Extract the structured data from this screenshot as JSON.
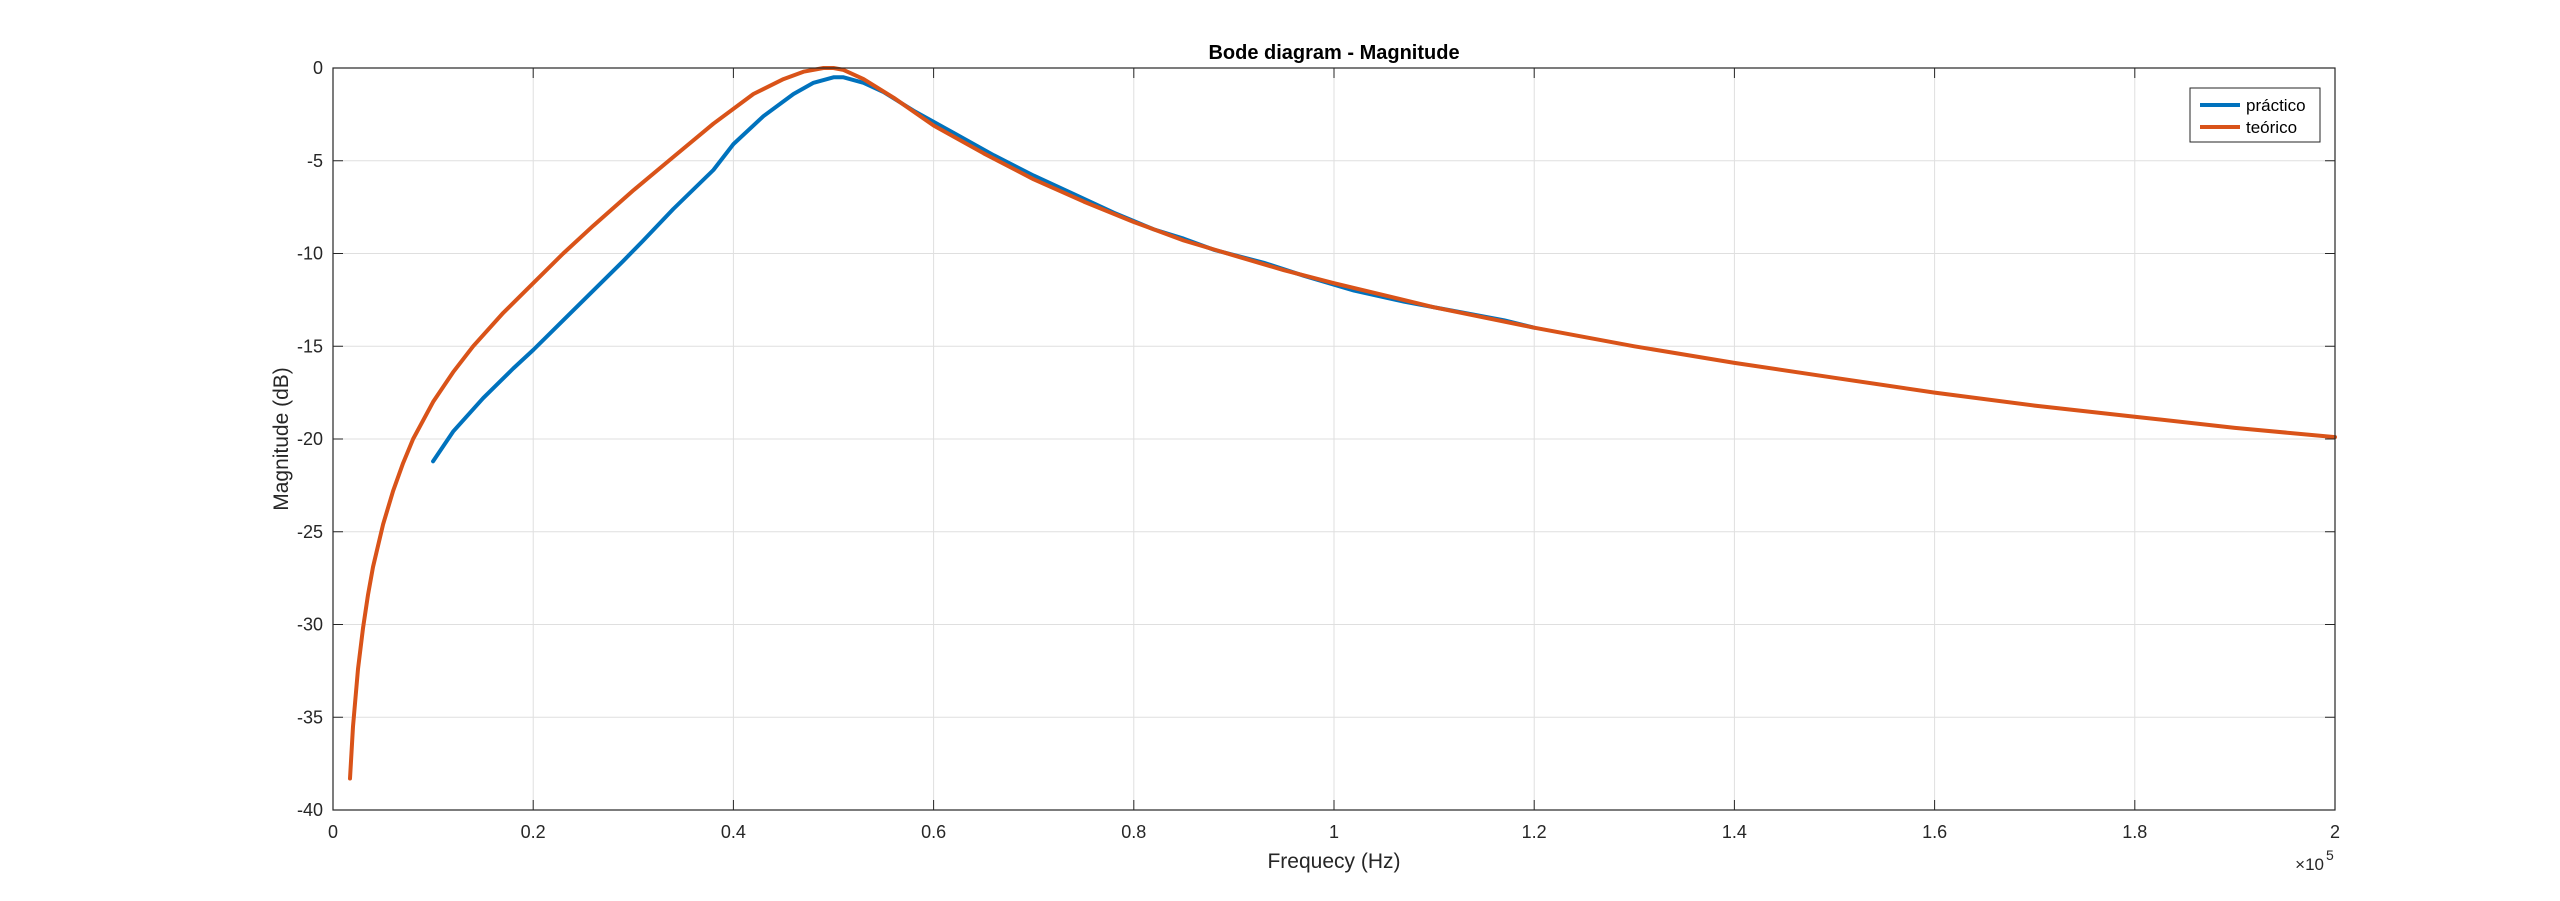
{
  "chart_data": {
    "type": "line",
    "title": "Bode diagram - Magnitude",
    "xlabel": "Frequecy (Hz)",
    "ylabel": "Magnitude (dB)",
    "x_exponent_label": "×10",
    "x_exponent_power": "5",
    "xlim": [
      0,
      2
    ],
    "ylim": [
      -40,
      0
    ],
    "x_ticks": [
      0,
      0.2,
      0.4,
      0.6,
      0.8,
      1,
      1.2,
      1.4,
      1.6,
      1.8,
      2
    ],
    "x_tick_labels": [
      "0",
      "0.2",
      "0.4",
      "0.6",
      "0.8",
      "1",
      "1.2",
      "1.4",
      "1.6",
      "1.8",
      "2"
    ],
    "y_ticks": [
      0,
      -5,
      -10,
      -15,
      -20,
      -25,
      -30,
      -35,
      -40
    ],
    "y_tick_labels": [
      "0",
      "-5",
      "-10",
      "-15",
      "-20",
      "-25",
      "-30",
      "-35",
      "-40"
    ],
    "grid": true,
    "legend_position": "top-right",
    "series": [
      {
        "name": "práctico",
        "color": "#0072BD",
        "x": [
          0.1,
          0.12,
          0.15,
          0.18,
          0.2,
          0.23,
          0.26,
          0.29,
          0.31,
          0.34,
          0.38,
          0.4,
          0.43,
          0.46,
          0.48,
          0.5,
          0.51,
          0.53,
          0.55,
          0.58,
          0.62,
          0.66,
          0.7,
          0.74,
          0.78,
          0.82,
          0.85,
          0.88,
          0.93,
          0.97,
          1.02,
          1.07,
          1.12,
          1.17,
          1.2
        ],
        "y": [
          -21.2,
          -19.6,
          -17.8,
          -16.2,
          -15.2,
          -13.6,
          -12.0,
          -10.4,
          -9.3,
          -7.6,
          -5.5,
          -4.1,
          -2.6,
          -1.4,
          -0.8,
          -0.5,
          -0.5,
          -0.8,
          -1.3,
          -2.3,
          -3.5,
          -4.7,
          -5.8,
          -6.8,
          -7.8,
          -8.7,
          -9.2,
          -9.8,
          -10.5,
          -11.2,
          -12.0,
          -12.6,
          -13.1,
          -13.6,
          -14.0
        ]
      },
      {
        "name": "teórico",
        "color": "#D95319",
        "x": [
          0.017,
          0.02,
          0.025,
          0.03,
          0.035,
          0.04,
          0.05,
          0.06,
          0.07,
          0.08,
          0.1,
          0.12,
          0.14,
          0.17,
          0.2,
          0.23,
          0.26,
          0.3,
          0.34,
          0.38,
          0.42,
          0.45,
          0.47,
          0.49,
          0.5,
          0.51,
          0.53,
          0.56,
          0.6,
          0.65,
          0.7,
          0.75,
          0.8,
          0.85,
          0.9,
          0.95,
          1.0,
          1.1,
          1.2,
          1.3,
          1.4,
          1.5,
          1.6,
          1.7,
          1.8,
          1.9,
          2.0
        ],
        "y": [
          -38.3,
          -35.5,
          -32.4,
          -30.2,
          -28.4,
          -26.9,
          -24.6,
          -22.8,
          -21.3,
          -20.0,
          -18.0,
          -16.4,
          -15.0,
          -13.2,
          -11.6,
          -10.0,
          -8.5,
          -6.6,
          -4.8,
          -3.0,
          -1.4,
          -0.6,
          -0.2,
          0.0,
          0.0,
          -0.1,
          -0.6,
          -1.6,
          -3.1,
          -4.6,
          -6.0,
          -7.2,
          -8.3,
          -9.3,
          -10.1,
          -10.9,
          -11.6,
          -12.9,
          -14.0,
          -15.0,
          -15.9,
          -16.7,
          -17.5,
          -18.2,
          -18.8,
          -19.4,
          -19.9
        ]
      }
    ]
  }
}
